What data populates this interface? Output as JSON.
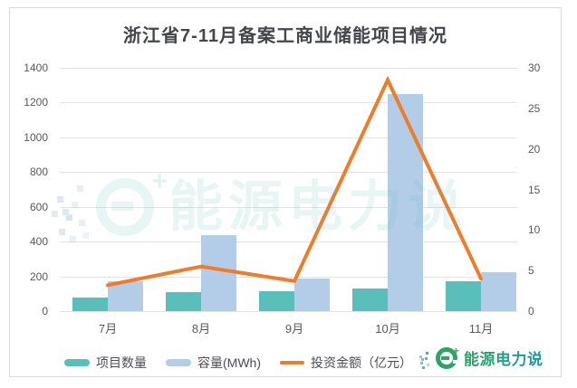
{
  "title": "浙江省7-11月备案工商业储能项目情况",
  "watermark": {
    "brand": "能源电力说",
    "plus": "+"
  },
  "logo": {
    "brand": "能源电力说",
    "plus": "+"
  },
  "colors": {
    "bar_projects": "#5abfba",
    "bar_capacity": "#b3cde8",
    "line_investment": "#ee7c2b",
    "gridline": "#e3e3e3",
    "axis_text": "#595959",
    "title_text": "#45454d",
    "card_border": "#d9d9d9"
  },
  "chart_data": {
    "type": "bar",
    "subtype": "combo-bar-line-dual-axis",
    "title": "浙江省7-11月备案工商业储能项目情况",
    "categories": [
      "7月",
      "8月",
      "9月",
      "10月",
      "11月"
    ],
    "series": [
      {
        "name": "项目数量",
        "type": "bar",
        "axis": "left",
        "color": "#5abfba",
        "values": [
          80,
          110,
          115,
          130,
          170
        ]
      },
      {
        "name": "容量(MWh)",
        "type": "bar",
        "axis": "left",
        "color": "#b3cde8",
        "values": [
          170,
          435,
          185,
          1250,
          225
        ]
      },
      {
        "name": "投资金额（亿元）",
        "type": "line",
        "axis": "right",
        "color": "#ee7c2b",
        "values": [
          3.2,
          5.5,
          3.7,
          28.5,
          4
        ]
      }
    ],
    "left_axis": {
      "min": 0,
      "max": 1400,
      "step": 200,
      "ticks": [
        "1400",
        "1200",
        "1000",
        "800",
        "600",
        "400",
        "200",
        "0"
      ]
    },
    "right_axis": {
      "min": 0,
      "max": 30,
      "step": 5,
      "ticks": [
        "30",
        "25",
        "20",
        "15",
        "10",
        "5",
        "0"
      ]
    },
    "grid": true,
    "legend_position": "bottom"
  }
}
